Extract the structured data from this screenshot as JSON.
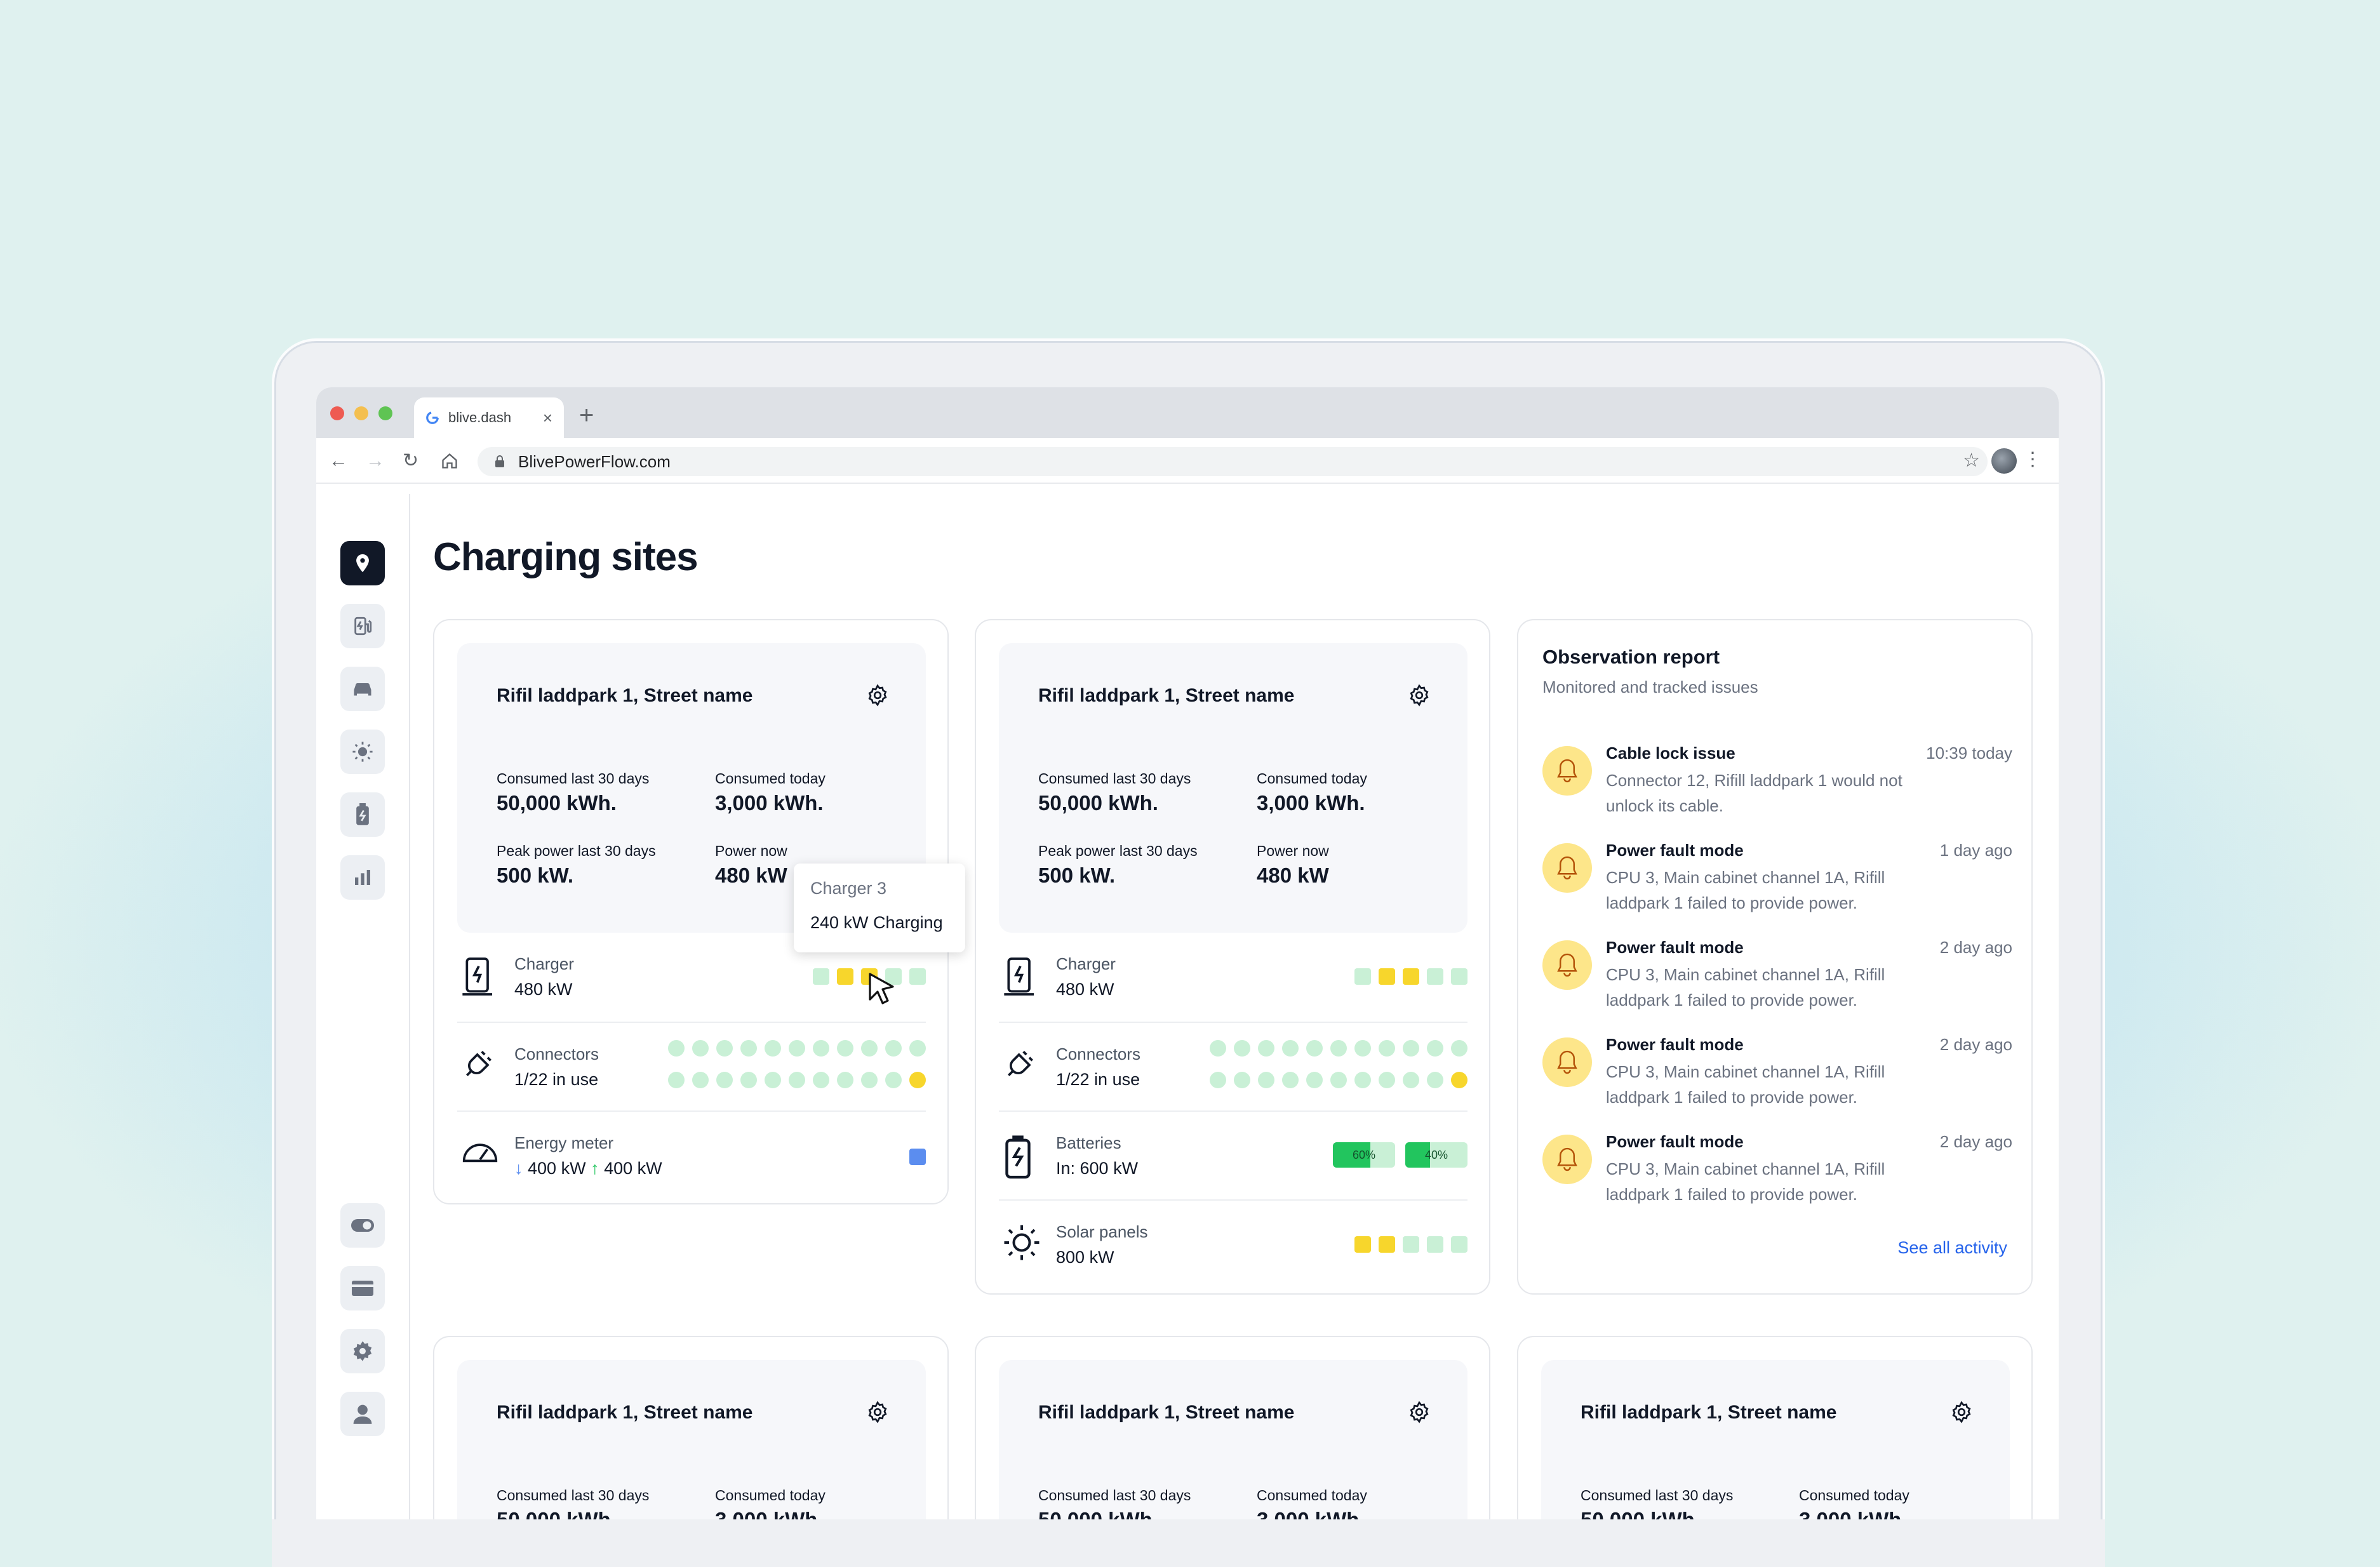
{
  "browser": {
    "tab_title": "blive.dash",
    "url": "BlivePowerFlow.com",
    "new_tab": "+",
    "tab_close": "×"
  },
  "page": {
    "title": "Charging sites"
  },
  "sidebar": {
    "items": [
      {
        "icon": "map-pin-icon",
        "active": true
      },
      {
        "icon": "charging-station-icon"
      },
      {
        "icon": "car-icon"
      },
      {
        "icon": "sun-icon"
      },
      {
        "icon": "battery-icon"
      },
      {
        "icon": "bar-chart-icon"
      },
      {
        "icon": "toggle-icon"
      },
      {
        "icon": "credit-card-icon"
      },
      {
        "icon": "settings-icon"
      },
      {
        "icon": "user-icon"
      }
    ]
  },
  "site_card": {
    "name": "Rifil laddpark 1, Street name",
    "consumed_30_label": "Consumed last 30 days",
    "consumed_30_value": "50,000 kWh.",
    "consumed_today_label": "Consumed today",
    "consumed_today_value": "3,000 kWh.",
    "peak_label": "Peak power last 30 days",
    "peak_value": "500 kW.",
    "power_now_label": "Power now",
    "power_now_value": "480 kW"
  },
  "rows": {
    "charger_label": "Charger",
    "charger_value": "480 kW",
    "connectors_label": "Connectors",
    "connectors_value": "1/22 in use",
    "energy_label": "Energy meter",
    "energy_down": "400 kW",
    "energy_up": "400 kW",
    "batteries_label": "Batteries",
    "batteries_value": "In: 600 kW",
    "battery_levels": [
      "60%",
      "40%"
    ],
    "solar_label": "Solar panels",
    "solar_value": "800 kW"
  },
  "tooltip": {
    "title": "Charger 3",
    "value": "240 kW Charging"
  },
  "observation": {
    "title": "Observation report",
    "subtitle": "Monitored and tracked issues",
    "items": [
      {
        "title": "Cable lock issue",
        "desc": "Connector 12, Rifill laddpark 1 would not unlock its cable.",
        "time": "10:39 today"
      },
      {
        "title": "Power fault mode",
        "desc": "CPU 3, Main cabinet channel 1A, Rifill laddpark 1 failed to provide power.",
        "time": "1 day ago"
      },
      {
        "title": "Power fault mode",
        "desc": "CPU 3, Main cabinet channel 1A, Rifill laddpark 1 failed to provide power.",
        "time": "2 day ago"
      },
      {
        "title": "Power fault mode",
        "desc": "CPU 3, Main cabinet channel 1A, Rifill laddpark 1 failed to provide power.",
        "time": "2 day ago"
      },
      {
        "title": "Power fault mode",
        "desc": "CPU 3, Main cabinet channel 1A, Rifill laddpark 1 failed to provide power.",
        "time": "2 day ago"
      }
    ],
    "see_all": "See all activity"
  },
  "colors": {
    "available": "#c9f0d6",
    "in_use": "#f7d62c",
    "meter": "#5b8def",
    "link": "#2563eb",
    "battery_fill": "#22c55e"
  }
}
